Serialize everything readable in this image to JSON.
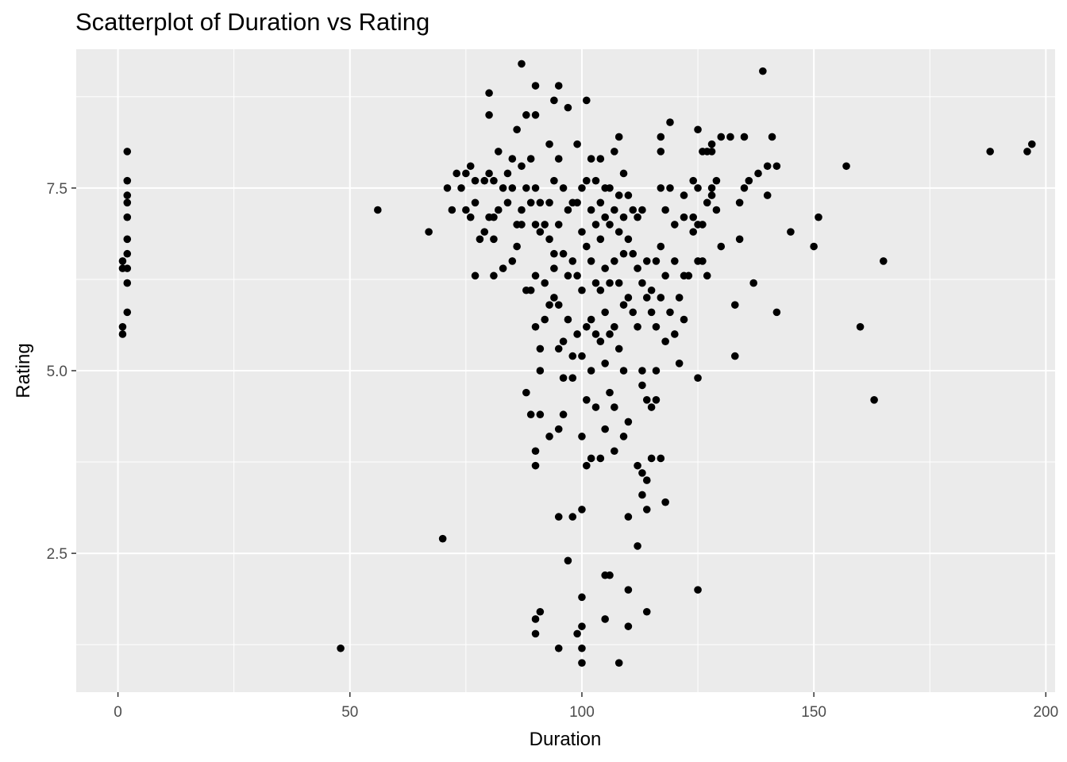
{
  "chart_data": {
    "type": "scatter",
    "title": "Scatterplot of Duration vs Rating",
    "xlabel": "Duration",
    "ylabel": "Rating",
    "xlim": [
      -9,
      202
    ],
    "ylim": [
      0.6,
      9.4
    ],
    "xticks": [
      0,
      50,
      100,
      150,
      200
    ],
    "yticks": [
      2.5,
      5.0,
      7.5
    ],
    "ytick_labels": [
      "2.5",
      "5.0",
      "7.5"
    ],
    "grid": true,
    "point_color": "#000000",
    "panel_background": "#ebebeb",
    "points": [
      [
        2,
        8.0
      ],
      [
        2,
        7.6
      ],
      [
        2,
        7.4
      ],
      [
        2,
        7.3
      ],
      [
        2,
        7.1
      ],
      [
        2,
        6.8
      ],
      [
        2,
        6.6
      ],
      [
        1,
        6.5
      ],
      [
        1,
        6.4
      ],
      [
        2,
        6.4
      ],
      [
        2,
        6.2
      ],
      [
        2,
        5.8
      ],
      [
        1,
        5.6
      ],
      [
        1,
        5.5
      ],
      [
        48,
        1.2
      ],
      [
        56,
        7.2
      ],
      [
        67,
        6.9
      ],
      [
        70,
        2.7
      ],
      [
        71,
        7.5
      ],
      [
        72,
        7.2
      ],
      [
        73,
        7.7
      ],
      [
        74,
        7.5
      ],
      [
        75,
        7.7
      ],
      [
        75,
        7.2
      ],
      [
        76,
        7.8
      ],
      [
        76,
        7.1
      ],
      [
        77,
        7.6
      ],
      [
        77,
        7.3
      ],
      [
        77,
        6.3
      ],
      [
        78,
        6.8
      ],
      [
        79,
        7.6
      ],
      [
        79,
        6.9
      ],
      [
        80,
        7.7
      ],
      [
        80,
        7.1
      ],
      [
        80,
        8.8
      ],
      [
        80,
        8.5
      ],
      [
        81,
        7.6
      ],
      [
        81,
        7.1
      ],
      [
        81,
        6.8
      ],
      [
        81,
        6.3
      ],
      [
        82,
        7.2
      ],
      [
        82,
        8.0
      ],
      [
        83,
        7.5
      ],
      [
        83,
        6.4
      ],
      [
        84,
        7.7
      ],
      [
        84,
        7.3
      ],
      [
        85,
        7.9
      ],
      [
        85,
        7.5
      ],
      [
        85,
        6.5
      ],
      [
        86,
        7.0
      ],
      [
        86,
        6.7
      ],
      [
        86,
        8.3
      ],
      [
        87,
        9.2
      ],
      [
        87,
        7.8
      ],
      [
        87,
        7.2
      ],
      [
        87,
        7.0
      ],
      [
        88,
        8.5
      ],
      [
        88,
        7.5
      ],
      [
        88,
        6.1
      ],
      [
        88,
        4.7
      ],
      [
        89,
        7.9
      ],
      [
        89,
        7.3
      ],
      [
        89,
        6.1
      ],
      [
        89,
        4.4
      ],
      [
        90,
        8.9
      ],
      [
        90,
        8.5
      ],
      [
        90,
        7.5
      ],
      [
        90,
        7.0
      ],
      [
        90,
        6.3
      ],
      [
        90,
        5.6
      ],
      [
        90,
        3.9
      ],
      [
        90,
        3.7
      ],
      [
        90,
        1.6
      ],
      [
        90,
        1.4
      ],
      [
        91,
        7.3
      ],
      [
        91,
        6.9
      ],
      [
        91,
        5.3
      ],
      [
        91,
        5.0
      ],
      [
        91,
        4.4
      ],
      [
        91,
        1.7
      ],
      [
        92,
        7.0
      ],
      [
        92,
        6.2
      ],
      [
        92,
        5.7
      ],
      [
        93,
        8.1
      ],
      [
        93,
        7.3
      ],
      [
        93,
        6.8
      ],
      [
        93,
        5.9
      ],
      [
        93,
        4.1
      ],
      [
        94,
        8.7
      ],
      [
        94,
        7.6
      ],
      [
        94,
        6.6
      ],
      [
        94,
        6.4
      ],
      [
        94,
        6.0
      ],
      [
        95,
        8.9
      ],
      [
        95,
        7.9
      ],
      [
        95,
        7.0
      ],
      [
        95,
        5.9
      ],
      [
        95,
        5.3
      ],
      [
        95,
        4.2
      ],
      [
        95,
        3.0
      ],
      [
        95,
        1.2
      ],
      [
        96,
        7.5
      ],
      [
        96,
        6.6
      ],
      [
        96,
        5.4
      ],
      [
        96,
        4.9
      ],
      [
        96,
        4.4
      ],
      [
        97,
        8.6
      ],
      [
        97,
        7.2
      ],
      [
        97,
        6.3
      ],
      [
        97,
        5.7
      ],
      [
        97,
        2.4
      ],
      [
        98,
        7.3
      ],
      [
        98,
        6.5
      ],
      [
        98,
        5.2
      ],
      [
        98,
        4.9
      ],
      [
        98,
        3.0
      ],
      [
        99,
        8.1
      ],
      [
        99,
        7.3
      ],
      [
        99,
        6.3
      ],
      [
        99,
        5.5
      ],
      [
        99,
        1.4
      ],
      [
        100,
        7.5
      ],
      [
        100,
        6.9
      ],
      [
        100,
        6.1
      ],
      [
        100,
        5.2
      ],
      [
        100,
        4.1
      ],
      [
        100,
        3.1
      ],
      [
        100,
        1.9
      ],
      [
        100,
        1.5
      ],
      [
        100,
        1.2
      ],
      [
        100,
        1.0
      ],
      [
        101,
        8.7
      ],
      [
        101,
        7.6
      ],
      [
        101,
        6.7
      ],
      [
        101,
        5.6
      ],
      [
        101,
        4.6
      ],
      [
        101,
        3.7
      ],
      [
        102,
        7.9
      ],
      [
        102,
        7.2
      ],
      [
        102,
        6.5
      ],
      [
        102,
        5.7
      ],
      [
        102,
        5.0
      ],
      [
        102,
        3.8
      ],
      [
        103,
        7.6
      ],
      [
        103,
        7.0
      ],
      [
        103,
        6.2
      ],
      [
        103,
        5.5
      ],
      [
        103,
        4.5
      ],
      [
        104,
        7.9
      ],
      [
        104,
        7.3
      ],
      [
        104,
        6.8
      ],
      [
        104,
        6.1
      ],
      [
        104,
        5.4
      ],
      [
        104,
        3.8
      ],
      [
        105,
        7.5
      ],
      [
        105,
        7.1
      ],
      [
        105,
        6.4
      ],
      [
        105,
        5.8
      ],
      [
        105,
        5.1
      ],
      [
        105,
        4.2
      ],
      [
        105,
        2.2
      ],
      [
        105,
        1.6
      ],
      [
        106,
        7.5
      ],
      [
        106,
        7.0
      ],
      [
        106,
        6.2
      ],
      [
        106,
        5.5
      ],
      [
        106,
        4.7
      ],
      [
        106,
        2.2
      ],
      [
        107,
        8.0
      ],
      [
        107,
        7.2
      ],
      [
        107,
        6.5
      ],
      [
        107,
        5.6
      ],
      [
        107,
        4.5
      ],
      [
        107,
        3.9
      ],
      [
        108,
        8.2
      ],
      [
        108,
        7.4
      ],
      [
        108,
        6.9
      ],
      [
        108,
        6.2
      ],
      [
        108,
        5.3
      ],
      [
        108,
        1.0
      ],
      [
        109,
        7.7
      ],
      [
        109,
        7.1
      ],
      [
        109,
        6.6
      ],
      [
        109,
        5.9
      ],
      [
        109,
        5.0
      ],
      [
        109,
        4.1
      ],
      [
        110,
        7.4
      ],
      [
        110,
        6.8
      ],
      [
        110,
        6.0
      ],
      [
        110,
        4.3
      ],
      [
        110,
        3.0
      ],
      [
        110,
        2.0
      ],
      [
        110,
        1.5
      ],
      [
        111,
        7.2
      ],
      [
        111,
        6.6
      ],
      [
        111,
        5.8
      ],
      [
        112,
        7.1
      ],
      [
        112,
        6.4
      ],
      [
        112,
        5.6
      ],
      [
        112,
        3.7
      ],
      [
        112,
        2.6
      ],
      [
        113,
        7.2
      ],
      [
        113,
        6.2
      ],
      [
        113,
        5.0
      ],
      [
        113,
        4.8
      ],
      [
        113,
        3.6
      ],
      [
        113,
        3.3
      ],
      [
        114,
        6.5
      ],
      [
        114,
        6.0
      ],
      [
        114,
        4.6
      ],
      [
        114,
        3.5
      ],
      [
        114,
        3.1
      ],
      [
        114,
        1.7
      ],
      [
        115,
        6.1
      ],
      [
        115,
        5.8
      ],
      [
        115,
        4.5
      ],
      [
        115,
        3.8
      ],
      [
        116,
        6.5
      ],
      [
        116,
        5.6
      ],
      [
        116,
        5.0
      ],
      [
        116,
        4.6
      ],
      [
        117,
        8.2
      ],
      [
        117,
        8.0
      ],
      [
        117,
        7.5
      ],
      [
        117,
        6.7
      ],
      [
        117,
        6.0
      ],
      [
        117,
        3.8
      ],
      [
        118,
        7.2
      ],
      [
        118,
        6.3
      ],
      [
        118,
        5.4
      ],
      [
        118,
        3.2
      ],
      [
        119,
        8.4
      ],
      [
        119,
        7.5
      ],
      [
        119,
        5.8
      ],
      [
        120,
        7.0
      ],
      [
        120,
        6.5
      ],
      [
        120,
        5.5
      ],
      [
        121,
        6.0
      ],
      [
        121,
        5.1
      ],
      [
        122,
        7.4
      ],
      [
        122,
        7.1
      ],
      [
        122,
        6.3
      ],
      [
        122,
        5.7
      ],
      [
        123,
        6.3
      ],
      [
        124,
        7.6
      ],
      [
        124,
        7.1
      ],
      [
        124,
        6.9
      ],
      [
        125,
        8.3
      ],
      [
        125,
        7.5
      ],
      [
        125,
        7.0
      ],
      [
        125,
        6.5
      ],
      [
        125,
        4.9
      ],
      [
        125,
        2.0
      ],
      [
        126,
        8.0
      ],
      [
        126,
        7.0
      ],
      [
        126,
        6.5
      ],
      [
        127,
        8.0
      ],
      [
        127,
        7.3
      ],
      [
        127,
        6.3
      ],
      [
        128,
        8.1
      ],
      [
        128,
        8.0
      ],
      [
        128,
        7.4
      ],
      [
        128,
        7.5
      ],
      [
        129,
        7.6
      ],
      [
        129,
        7.2
      ],
      [
        130,
        8.2
      ],
      [
        130,
        6.7
      ],
      [
        132,
        8.2
      ],
      [
        133,
        5.9
      ],
      [
        133,
        5.2
      ],
      [
        134,
        7.3
      ],
      [
        134,
        6.8
      ],
      [
        135,
        7.5
      ],
      [
        135,
        8.2
      ],
      [
        136,
        7.6
      ],
      [
        137,
        6.2
      ],
      [
        138,
        7.7
      ],
      [
        139,
        9.1
      ],
      [
        140,
        7.8
      ],
      [
        140,
        7.4
      ],
      [
        141,
        8.2
      ],
      [
        142,
        7.8
      ],
      [
        142,
        5.8
      ],
      [
        145,
        6.9
      ],
      [
        150,
        6.7
      ],
      [
        151,
        7.1
      ],
      [
        157,
        7.8
      ],
      [
        160,
        5.6
      ],
      [
        163,
        4.6
      ],
      [
        165,
        6.5
      ],
      [
        188,
        8.0
      ],
      [
        196,
        8.0
      ],
      [
        197,
        8.1
      ]
    ]
  }
}
